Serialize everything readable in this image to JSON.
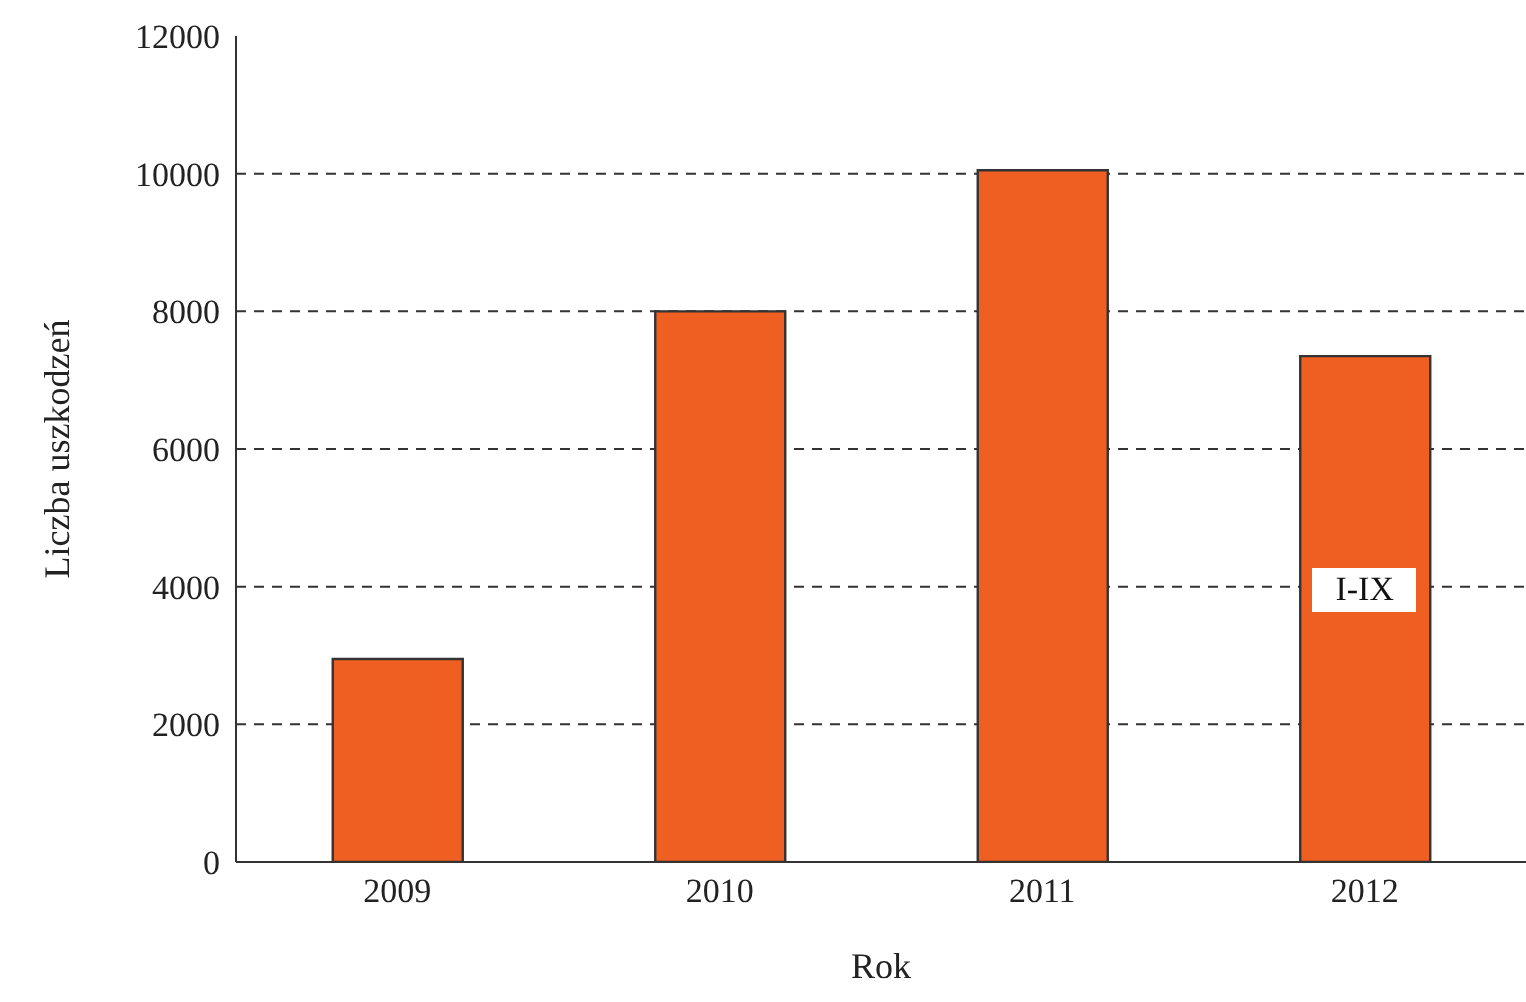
{
  "chart_data": {
    "type": "bar",
    "xlabel": "Rok",
    "ylabel": "Liczba uszkodzeń",
    "categories": [
      "2009",
      "2010",
      "2011",
      "2012"
    ],
    "values": [
      2950,
      8000,
      10050,
      7350
    ],
    "color": "#f05f22",
    "ylim": [
      0,
      12000
    ],
    "yticks": [
      0,
      2000,
      4000,
      6000,
      8000,
      10000,
      12000
    ],
    "grid": "y",
    "annotations": [
      "I-IX"
    ]
  }
}
